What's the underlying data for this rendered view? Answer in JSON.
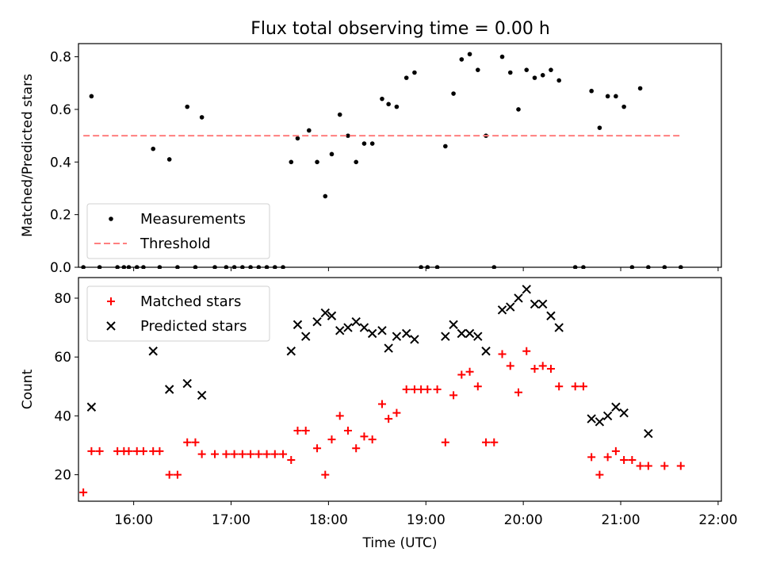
{
  "figure_title": "Flux total observing time = 0.00 h",
  "chart_data": [
    {
      "type": "scatter",
      "ylabel": "Matched/Predicted stars",
      "xlim": [
        "15:26",
        "22:02"
      ],
      "ylim": [
        0,
        0.85
      ],
      "yticks": [
        "0.0",
        "0.2",
        "0.4",
        "0.6",
        "0.8"
      ],
      "ytick_values": [
        0,
        0.2,
        0.4,
        0.6,
        0.8
      ],
      "legend_location": "lower-left",
      "series": [
        {
          "name": "Measurements",
          "marker": "dot",
          "color": "#000000",
          "points": [
            [
              "15:29",
              0.0
            ],
            [
              "15:34",
              0.65
            ],
            [
              "15:39",
              0.0
            ],
            [
              "15:50",
              0.0
            ],
            [
              "15:54",
              0.0
            ],
            [
              "15:57",
              0.0
            ],
            [
              "16:02",
              0.0
            ],
            [
              "16:06",
              0.0
            ],
            [
              "16:12",
              0.45
            ],
            [
              "16:16",
              0.0
            ],
            [
              "16:22",
              0.41
            ],
            [
              "16:27",
              0.0
            ],
            [
              "16:33",
              0.61
            ],
            [
              "16:38",
              0.0
            ],
            [
              "16:42",
              0.57
            ],
            [
              "16:50",
              0.0
            ],
            [
              "16:57",
              0.0
            ],
            [
              "17:02",
              0.0
            ],
            [
              "17:07",
              0.0
            ],
            [
              "17:12",
              0.0
            ],
            [
              "17:17",
              0.0
            ],
            [
              "17:22",
              0.0
            ],
            [
              "17:27",
              0.0
            ],
            [
              "17:32",
              0.0
            ],
            [
              "17:37",
              0.4
            ],
            [
              "17:41",
              0.49
            ],
            [
              "17:48",
              0.52
            ],
            [
              "17:53",
              0.4
            ],
            [
              "17:58",
              0.27
            ],
            [
              "18:02",
              0.43
            ],
            [
              "18:07",
              0.58
            ],
            [
              "18:12",
              0.5
            ],
            [
              "18:17",
              0.4
            ],
            [
              "18:22",
              0.47
            ],
            [
              "18:27",
              0.47
            ],
            [
              "18:33",
              0.64
            ],
            [
              "18:37",
              0.62
            ],
            [
              "18:42",
              0.61
            ],
            [
              "18:48",
              0.72
            ],
            [
              "18:53",
              0.74
            ],
            [
              "18:57",
              0.0
            ],
            [
              "19:01",
              0.0
            ],
            [
              "19:07",
              0.0
            ],
            [
              "19:12",
              0.46
            ],
            [
              "19:17",
              0.66
            ],
            [
              "19:22",
              0.79
            ],
            [
              "19:27",
              0.81
            ],
            [
              "19:32",
              0.75
            ],
            [
              "19:37",
              0.5
            ],
            [
              "19:42",
              0.0
            ],
            [
              "19:47",
              0.8
            ],
            [
              "19:52",
              0.74
            ],
            [
              "19:57",
              0.6
            ],
            [
              "20:02",
              0.75
            ],
            [
              "20:07",
              0.72
            ],
            [
              "20:12",
              0.73
            ],
            [
              "20:17",
              0.75
            ],
            [
              "20:22",
              0.71
            ],
            [
              "20:32",
              0.0
            ],
            [
              "20:37",
              0.0
            ],
            [
              "20:42",
              0.67
            ],
            [
              "20:47",
              0.53
            ],
            [
              "20:52",
              0.65
            ],
            [
              "20:57",
              0.65
            ],
            [
              "21:02",
              0.61
            ],
            [
              "21:07",
              0.0
            ],
            [
              "21:12",
              0.68
            ],
            [
              "21:17",
              0.0
            ],
            [
              "21:27",
              0.0
            ],
            [
              "21:37",
              0.0
            ]
          ]
        },
        {
          "name": "Threshold",
          "style": "dashed-line",
          "color": "#ff7f7f",
          "points": [
            [
              "15:29",
              0.5
            ],
            [
              "21:37",
              0.5
            ]
          ]
        }
      ]
    },
    {
      "type": "scatter",
      "xlabel": "Time (UTC)",
      "ylabel": "Count",
      "xlim": [
        "15:26",
        "22:02"
      ],
      "ylim": [
        11,
        87
      ],
      "xticks": [
        "16:00",
        "17:00",
        "18:00",
        "19:00",
        "20:00",
        "21:00",
        "22:00"
      ],
      "yticks": [
        "20",
        "40",
        "60",
        "80"
      ],
      "ytick_values": [
        20,
        40,
        60,
        80
      ],
      "legend_location": "upper-left",
      "series": [
        {
          "name": "Matched stars",
          "marker": "plus",
          "color": "#ff0000",
          "points": [
            [
              "15:29",
              14
            ],
            [
              "15:34",
              28
            ],
            [
              "15:39",
              28
            ],
            [
              "15:50",
              28
            ],
            [
              "15:54",
              28
            ],
            [
              "15:57",
              28
            ],
            [
              "16:02",
              28
            ],
            [
              "16:06",
              28
            ],
            [
              "16:12",
              28
            ],
            [
              "16:16",
              28
            ],
            [
              "16:22",
              20
            ],
            [
              "16:27",
              20
            ],
            [
              "16:33",
              31
            ],
            [
              "16:38",
              31
            ],
            [
              "16:42",
              27
            ],
            [
              "16:50",
              27
            ],
            [
              "16:57",
              27
            ],
            [
              "17:02",
              27
            ],
            [
              "17:07",
              27
            ],
            [
              "17:12",
              27
            ],
            [
              "17:17",
              27
            ],
            [
              "17:22",
              27
            ],
            [
              "17:27",
              27
            ],
            [
              "17:32",
              27
            ],
            [
              "17:37",
              25
            ],
            [
              "17:41",
              35
            ],
            [
              "17:46",
              35
            ],
            [
              "17:53",
              29
            ],
            [
              "17:58",
              20
            ],
            [
              "18:02",
              32
            ],
            [
              "18:07",
              40
            ],
            [
              "18:12",
              35
            ],
            [
              "18:17",
              29
            ],
            [
              "18:22",
              33
            ],
            [
              "18:27",
              32
            ],
            [
              "18:33",
              44
            ],
            [
              "18:37",
              39
            ],
            [
              "18:42",
              41
            ],
            [
              "18:48",
              49
            ],
            [
              "18:53",
              49
            ],
            [
              "18:57",
              49
            ],
            [
              "19:01",
              49
            ],
            [
              "19:07",
              49
            ],
            [
              "19:12",
              31
            ],
            [
              "19:17",
              47
            ],
            [
              "19:22",
              54
            ],
            [
              "19:27",
              55
            ],
            [
              "19:32",
              50
            ],
            [
              "19:37",
              31
            ],
            [
              "19:42",
              31
            ],
            [
              "19:47",
              61
            ],
            [
              "19:52",
              57
            ],
            [
              "19:57",
              48
            ],
            [
              "20:02",
              62
            ],
            [
              "20:07",
              56
            ],
            [
              "20:12",
              57
            ],
            [
              "20:17",
              56
            ],
            [
              "20:22",
              50
            ],
            [
              "20:32",
              50
            ],
            [
              "20:37",
              50
            ],
            [
              "20:42",
              26
            ],
            [
              "20:47",
              20
            ],
            [
              "20:52",
              26
            ],
            [
              "20:57",
              28
            ],
            [
              "21:02",
              25
            ],
            [
              "21:07",
              25
            ],
            [
              "21:12",
              23
            ],
            [
              "21:17",
              23
            ],
            [
              "21:27",
              23
            ],
            [
              "21:37",
              23
            ]
          ]
        },
        {
          "name": "Predicted stars",
          "marker": "x",
          "color": "#000000",
          "points": [
            [
              "15:34",
              43
            ],
            [
              "16:12",
              62
            ],
            [
              "16:22",
              49
            ],
            [
              "16:33",
              51
            ],
            [
              "16:42",
              47
            ],
            [
              "17:37",
              62
            ],
            [
              "17:41",
              71
            ],
            [
              "17:46",
              67
            ],
            [
              "17:53",
              72
            ],
            [
              "17:58",
              75
            ],
            [
              "18:02",
              74
            ],
            [
              "18:07",
              69
            ],
            [
              "18:12",
              70
            ],
            [
              "18:17",
              72
            ],
            [
              "18:22",
              70
            ],
            [
              "18:27",
              68
            ],
            [
              "18:33",
              69
            ],
            [
              "18:37",
              63
            ],
            [
              "18:42",
              67
            ],
            [
              "18:48",
              68
            ],
            [
              "18:53",
              66
            ],
            [
              "19:12",
              67
            ],
            [
              "19:17",
              71
            ],
            [
              "19:22",
              68
            ],
            [
              "19:27",
              68
            ],
            [
              "19:32",
              67
            ],
            [
              "19:37",
              62
            ],
            [
              "19:47",
              76
            ],
            [
              "19:52",
              77
            ],
            [
              "19:57",
              80
            ],
            [
              "20:02",
              83
            ],
            [
              "20:07",
              78
            ],
            [
              "20:12",
              78
            ],
            [
              "20:17",
              74
            ],
            [
              "20:22",
              70
            ],
            [
              "20:42",
              39
            ],
            [
              "20:47",
              38
            ],
            [
              "20:52",
              40
            ],
            [
              "20:57",
              43
            ],
            [
              "21:02",
              41
            ],
            [
              "21:17",
              34
            ]
          ]
        }
      ]
    }
  ]
}
